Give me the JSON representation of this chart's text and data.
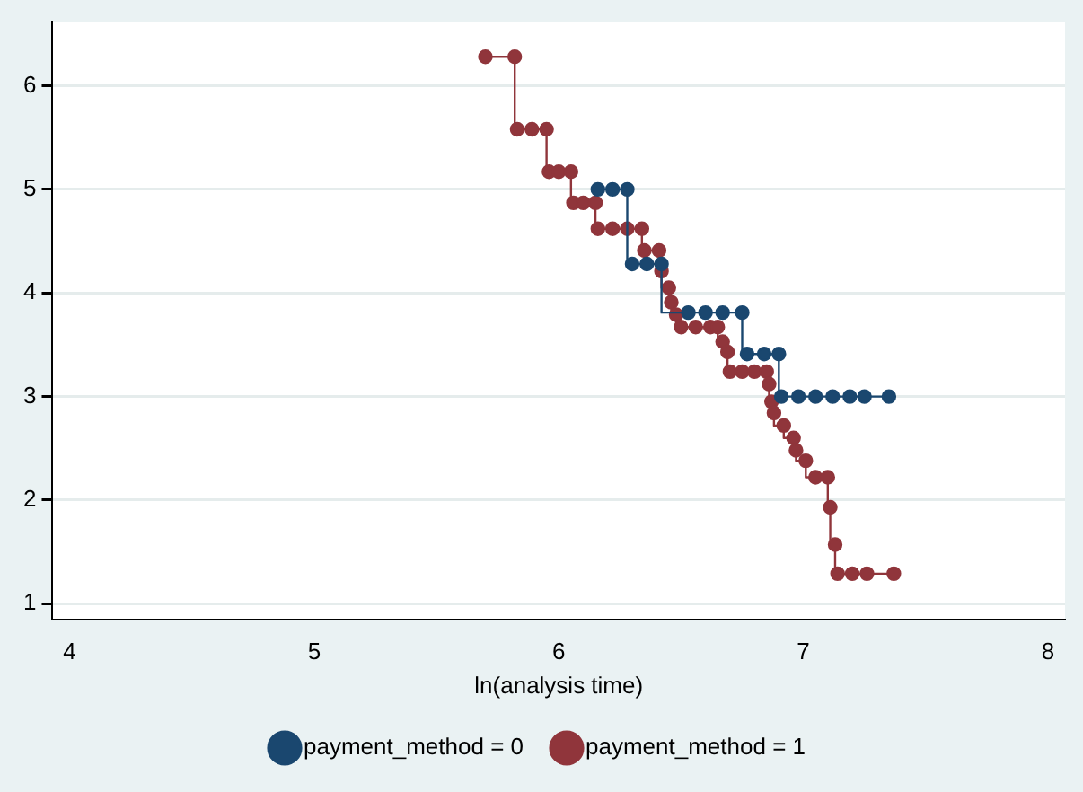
{
  "chart_data": {
    "type": "step",
    "xlabel": "ln(analysis time)",
    "xlim": [
      3.93,
      8.07
    ],
    "xticks": [
      4,
      5,
      6,
      7,
      8
    ],
    "ylim": [
      0.85,
      6.62
    ],
    "yticks": [
      1,
      2,
      3,
      4,
      5,
      6
    ],
    "grid": "y",
    "legend": "bottom",
    "marker": "circle",
    "line_style": "solid",
    "series": [
      {
        "name": "payment_method = 0",
        "color": "#1a476f",
        "x": [
          6.16,
          6.22,
          6.28,
          6.3,
          6.36,
          6.42,
          6.53,
          6.6,
          6.67,
          6.75,
          6.77,
          6.84,
          6.9,
          6.91,
          6.98,
          7.05,
          7.12,
          7.19,
          7.25,
          7.35
        ],
        "values": [
          5.0,
          5.0,
          5.0,
          4.28,
          4.28,
          4.28,
          3.81,
          3.81,
          3.81,
          3.81,
          3.41,
          3.41,
          3.41,
          3.0,
          3.0,
          3.0,
          3.0,
          3.0,
          3.0,
          3.0
        ]
      },
      {
        "name": "payment_method = 1",
        "color": "#90353b",
        "x": [
          5.7,
          5.82,
          5.83,
          5.89,
          5.95,
          5.96,
          6.0,
          6.05,
          6.06,
          6.1,
          6.15,
          6.16,
          6.22,
          6.28,
          6.34,
          6.35,
          6.41,
          6.42,
          6.45,
          6.46,
          6.48,
          6.5,
          6.56,
          6.62,
          6.65,
          6.67,
          6.69,
          6.7,
          6.75,
          6.8,
          6.85,
          6.86,
          6.87,
          6.88,
          6.92,
          6.96,
          6.97,
          7.01,
          7.05,
          7.1,
          7.11,
          7.13,
          7.14,
          7.2,
          7.26,
          7.37
        ],
        "values": [
          6.28,
          6.28,
          5.58,
          5.58,
          5.58,
          5.17,
          5.17,
          5.17,
          4.87,
          4.87,
          4.87,
          4.62,
          4.62,
          4.62,
          4.62,
          4.41,
          4.41,
          4.21,
          4.05,
          3.91,
          3.79,
          3.67,
          3.67,
          3.67,
          3.67,
          3.53,
          3.43,
          3.24,
          3.24,
          3.24,
          3.24,
          3.12,
          2.95,
          2.84,
          2.72,
          2.6,
          2.48,
          2.38,
          2.22,
          2.22,
          1.93,
          1.57,
          1.29,
          1.29,
          1.29,
          1.29
        ]
      }
    ]
  }
}
